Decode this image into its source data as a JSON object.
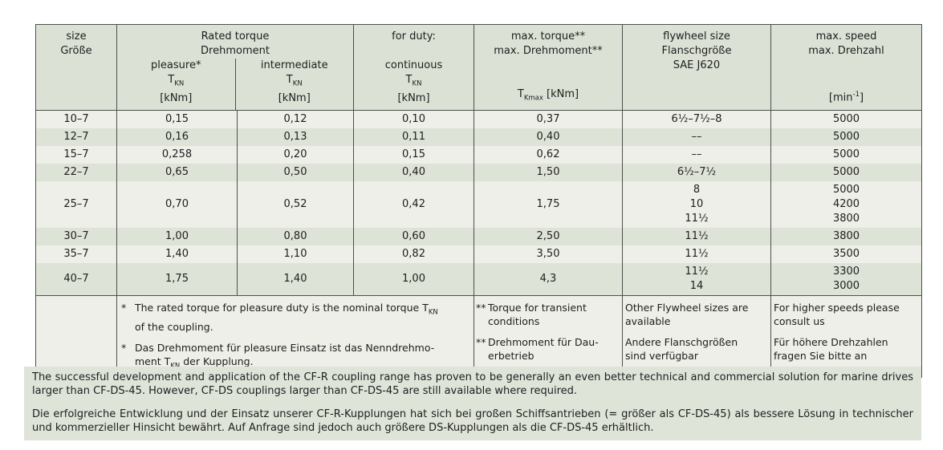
{
  "colors": {
    "page_bg": "#ffffff",
    "header_bg": "#dce1d5",
    "row_light_bg": "#edefe8",
    "row_dark_bg": "#dee3d8",
    "notes_bg": "#dfe4d9",
    "border": "#4d4f4c",
    "text": "#1e1e1e"
  },
  "table": {
    "header": {
      "size": [
        {
          "t": "size"
        },
        {
          "br": true
        },
        {
          "t": "Größe"
        }
      ],
      "rated_title": [
        {
          "t": "Rated torque"
        },
        {
          "br": true
        },
        {
          "t": "Drehmoment"
        }
      ],
      "pleasure": [
        {
          "t": "pleasure*"
        },
        {
          "br": true
        },
        {
          "t": "T"
        },
        {
          "sub": "KN"
        },
        {
          "br": true
        },
        {
          "t": "[kNm]"
        }
      ],
      "intermediate": [
        {
          "t": "intermediate"
        },
        {
          "br": true
        },
        {
          "t": "T"
        },
        {
          "sub": "KN"
        },
        {
          "br": true
        },
        {
          "t": "[kNm]"
        }
      ],
      "duty": [
        {
          "t": "for duty:"
        },
        {
          "br": true
        },
        {
          "br": true
        },
        {
          "t": "continuous"
        },
        {
          "br": true
        },
        {
          "t": "T"
        },
        {
          "sub": "KN"
        },
        {
          "br": true
        },
        {
          "t": "[kNm]"
        }
      ],
      "max_torque": [
        {
          "t": "max. torque**"
        },
        {
          "br": true
        },
        {
          "t": "max. Drehmoment**"
        },
        {
          "br": true
        },
        {
          "br": true
        },
        {
          "br": true
        },
        {
          "t": "T"
        },
        {
          "sub": "Kmax"
        },
        {
          "t": " [kNm]"
        }
      ],
      "flywheel": [
        {
          "t": "flywheel size"
        },
        {
          "br": true
        },
        {
          "t": "Flanschgröße"
        },
        {
          "br": true
        },
        {
          "t": "SAE J620"
        }
      ],
      "max_speed": [
        {
          "t": "max. speed"
        },
        {
          "br": true
        },
        {
          "t": "max. Drehzahl"
        },
        {
          "br": true
        },
        {
          "br": true
        },
        {
          "br": true
        },
        {
          "t": "[min"
        },
        {
          "sup": "-1"
        },
        {
          "t": "]"
        }
      ]
    },
    "rows": [
      {
        "size": "10–7",
        "pleasure": "0,15",
        "intermediate": "0,12",
        "continuous": "0,10",
        "max_torque": "0,37",
        "flywheel": [
          "6½–7½–8"
        ],
        "speeds": [
          "5000"
        ],
        "shade": "light"
      },
      {
        "size": "12–7",
        "pleasure": "0,16",
        "intermediate": "0,13",
        "continuous": "0,11",
        "max_torque": "0,40",
        "flywheel": [
          "––"
        ],
        "speeds": [
          "5000"
        ],
        "shade": "dark"
      },
      {
        "size": "15–7",
        "pleasure": "0,258",
        "intermediate": "0,20",
        "continuous": "0,15",
        "max_torque": "0,62",
        "flywheel": [
          "––"
        ],
        "speeds": [
          "5000"
        ],
        "shade": "light"
      },
      {
        "size": "22–7",
        "pleasure": "0,65",
        "intermediate": "0,50",
        "continuous": "0,40",
        "max_torque": "1,50",
        "flywheel": [
          "6½–7½"
        ],
        "speeds": [
          "5000"
        ],
        "shade": "dark"
      },
      {
        "size": "25–7",
        "pleasure": "0,70",
        "intermediate": "0,52",
        "continuous": "0,42",
        "max_torque": "1,75",
        "flywheel": [
          "8",
          "10",
          "11½"
        ],
        "speeds": [
          "5000",
          "4200",
          "3800"
        ],
        "shade": "light"
      },
      {
        "size": "30–7",
        "pleasure": "1,00",
        "intermediate": "0,80",
        "continuous": "0,60",
        "max_torque": "2,50",
        "flywheel": [
          "11½"
        ],
        "speeds": [
          "3800"
        ],
        "shade": "dark"
      },
      {
        "size": "35–7",
        "pleasure": "1,40",
        "intermediate": "1,10",
        "continuous": "0,82",
        "max_torque": "3,50",
        "flywheel": [
          "11½"
        ],
        "speeds": [
          "3500"
        ],
        "shade": "light"
      },
      {
        "size": "40–7",
        "pleasure": "1,75",
        "intermediate": "1,40",
        "continuous": "1,00",
        "max_torque": "4,3",
        "flywheel": [
          "11½",
          "14"
        ],
        "speeds": [
          "3300",
          "3000"
        ],
        "shade": "dark"
      }
    ],
    "footnotes": {
      "rated": [
        {
          "marker": "*",
          "segments": [
            {
              "t": "The rated torque for pleasure duty is the nominal torque T"
            },
            {
              "sub": "KN"
            },
            {
              "br": true
            },
            {
              "t": "of the coupling."
            }
          ]
        },
        {
          "marker": "*",
          "segments": [
            {
              "t": "Das Drehmoment für pleasure Einsatz ist das Nenndrehmo-"
            },
            {
              "br": true
            },
            {
              "t": "ment T"
            },
            {
              "sub": "KN"
            },
            {
              "t": " der Kupplung."
            }
          ]
        }
      ],
      "torque": [
        {
          "marker": "**",
          "segments": [
            {
              "t": "Torque for transient"
            },
            {
              "br": true
            },
            {
              "t": "conditions"
            }
          ]
        },
        {
          "marker": "**",
          "segments": [
            {
              "t": "Drehmoment für Dau-"
            },
            {
              "br": true
            },
            {
              "t": "erbetrieb"
            }
          ]
        }
      ],
      "flywheel": [
        [
          {
            "t": "Other Flywheel sizes are"
          },
          {
            "br": true
          },
          {
            "t": "available"
          }
        ],
        [
          {
            "t": "Andere Flanschgrößen"
          },
          {
            "br": true
          },
          {
            "t": "sind verfügbar"
          }
        ]
      ],
      "speed": [
        [
          {
            "t": "For higher speeds please"
          },
          {
            "br": true
          },
          {
            "t": "consult us"
          }
        ],
        [
          {
            "t": "Für höhere Drehzahlen"
          },
          {
            "br": true
          },
          {
            "t": "fragen Sie bitte an"
          }
        ]
      ]
    }
  },
  "notes": {
    "en": "The successful development and application of the CF-R coupling range has proven to be generally an even better technical and commercial solution for marine drives larger than CF-DS-45. However, CF-DS couplings larger than CF-DS-45 are still available where required.",
    "de": "Die erfolgreiche Entwicklung und der Einsatz unserer CF-R-Kupplungen hat sich bei großen Schiffsantrieben (= größer als CF-DS-45) als bessere Lösung in technischer und kommerzieller Hinsicht bewährt. Auf Anfrage sind jedoch auch größere DS-Kupplungen als die CF-DS-45 erhältlich."
  }
}
